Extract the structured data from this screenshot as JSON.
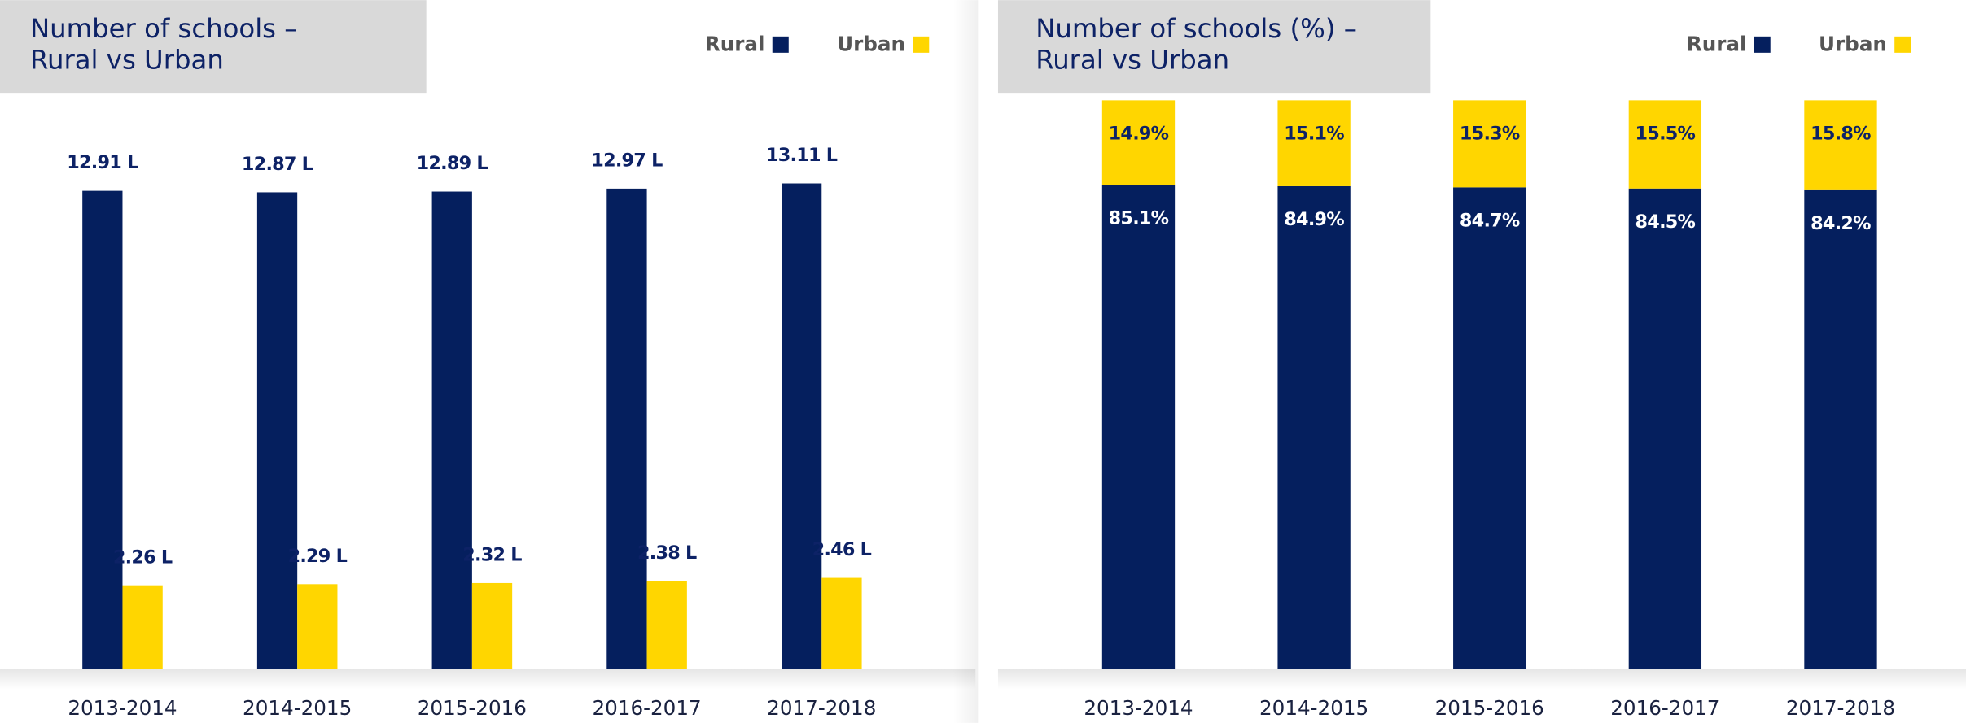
{
  "chart_data": [
    {
      "type": "bar",
      "title": [
        "Number of schools –",
        "Rural vs Urban"
      ],
      "categories": [
        "2013-2014",
        "2014-2015",
        "2015-2016",
        "2016-2017",
        "2017-2018"
      ],
      "series": [
        {
          "name": "Rural",
          "color": "#051f5e",
          "values": [
            12.91,
            12.87,
            12.89,
            12.97,
            13.11
          ],
          "value_labels": [
            "12.91 L",
            "12.87 L",
            "12.89 L",
            "12.97 L",
            "13.11 L"
          ]
        },
        {
          "name": "Urban",
          "color": "#ffd600",
          "values": [
            2.26,
            2.29,
            2.32,
            2.38,
            2.46
          ],
          "value_labels": [
            "2.26 L",
            "2.29 L",
            "2.32 L",
            "2.38 L",
            "2.46 L"
          ]
        }
      ],
      "ylim": [
        0,
        14
      ],
      "legend": "top-right"
    },
    {
      "type": "stacked_bar",
      "title": [
        "Number of schools (%) –",
        "Rural vs Urban"
      ],
      "categories": [
        "2013-2014",
        "2014-2015",
        "2015-2016",
        "2016-2017",
        "2017-2018"
      ],
      "series": [
        {
          "name": "Rural",
          "color": "#051f5e",
          "values": [
            85.1,
            84.9,
            84.7,
            84.5,
            84.2
          ],
          "value_labels": [
            "85.1%",
            "84.9%",
            "84.7%",
            "84.5%",
            "84.2%"
          ]
        },
        {
          "name": "Urban",
          "color": "#ffd600",
          "values": [
            14.9,
            15.1,
            15.3,
            15.5,
            15.8
          ],
          "value_labels": [
            "14.9%",
            "15.1%",
            "15.3%",
            "15.5%",
            "15.8%"
          ]
        }
      ],
      "ylim": [
        0,
        100
      ],
      "legend": "top-right"
    }
  ]
}
